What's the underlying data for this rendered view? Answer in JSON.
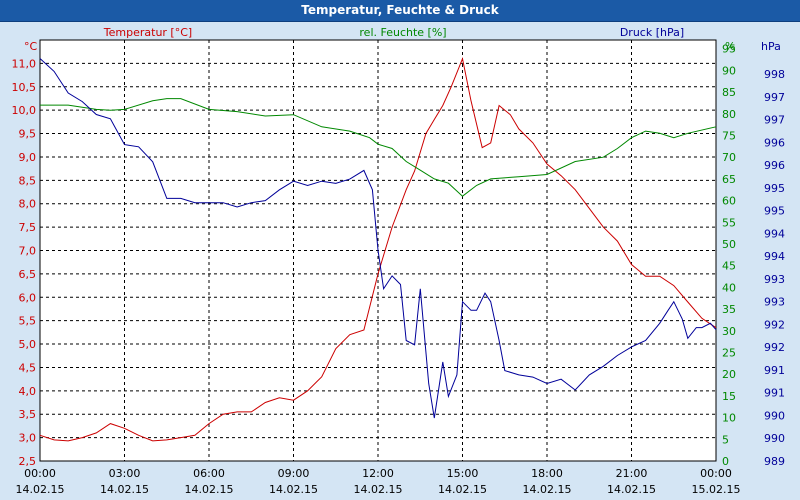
{
  "window": {
    "title": "Temperatur, Feuchte & Druck"
  },
  "chart_data": {
    "type": "line",
    "title": "Temperatur, Feuchte & Druck",
    "grid": true,
    "axes": {
      "temperature": {
        "unit_label": "°C",
        "ylim": [
          2.5,
          11.5
        ],
        "ticks": [
          "11,0",
          "10,5",
          "10,0",
          "9,5",
          "9,0",
          "8,5",
          "8,0",
          "7,5",
          "7,0",
          "6,5",
          "6,0",
          "5,5",
          "5,0",
          "4,5",
          "4,0",
          "3,5",
          "3,0",
          "2,5"
        ]
      },
      "humidity": {
        "unit_label": "%",
        "ylim": [
          0,
          97
        ],
        "ticks": [
          "95",
          "90",
          "85",
          "80",
          "75",
          "70",
          "65",
          "60",
          "55",
          "50",
          "45",
          "40",
          "35",
          "30",
          "25",
          "20",
          "15",
          "10",
          "5",
          "0"
        ]
      },
      "pressure": {
        "unit_label": "hPa",
        "ticks": [
          "998",
          "997",
          "997",
          "996",
          "996",
          "995",
          "995",
          "994",
          "994",
          "993",
          "993",
          "992",
          "992",
          "991",
          "991",
          "990",
          "990",
          "989"
        ]
      }
    },
    "x_ticks": [
      {
        "time": "00:00",
        "date": "14.02.15"
      },
      {
        "time": "03:00",
        "date": "14.02.15"
      },
      {
        "time": "06:00",
        "date": "14.02.15"
      },
      {
        "time": "09:00",
        "date": "14.02.15"
      },
      {
        "time": "12:00",
        "date": "14.02.15"
      },
      {
        "time": "15:00",
        "date": "14.02.15"
      },
      {
        "time": "18:00",
        "date": "14.02.15"
      },
      {
        "time": "21:00",
        "date": "14.02.15"
      },
      {
        "time": "00:00",
        "date": "15.02.15"
      }
    ],
    "series": [
      {
        "name": "Temperatur [°C]",
        "axis": "temperature",
        "color": "#cc0000",
        "points": [
          [
            0,
            3.05
          ],
          [
            0.5,
            2.95
          ],
          [
            1,
            2.93
          ],
          [
            1.5,
            3.0
          ],
          [
            2,
            3.1
          ],
          [
            2.5,
            3.3
          ],
          [
            3,
            3.2
          ],
          [
            3.5,
            3.05
          ],
          [
            4,
            2.93
          ],
          [
            4.5,
            2.95
          ],
          [
            5,
            3.0
          ],
          [
            5.5,
            3.05
          ],
          [
            6,
            3.3
          ],
          [
            6.5,
            3.5
          ],
          [
            7,
            3.55
          ],
          [
            7.5,
            3.55
          ],
          [
            8,
            3.75
          ],
          [
            8.5,
            3.85
          ],
          [
            9,
            3.8
          ],
          [
            9.5,
            4.0
          ],
          [
            10,
            4.3
          ],
          [
            10.5,
            4.9
          ],
          [
            11,
            5.2
          ],
          [
            11.5,
            5.3
          ],
          [
            12,
            6.5
          ],
          [
            12.5,
            7.5
          ],
          [
            13,
            8.3
          ],
          [
            13.3,
            8.7
          ],
          [
            13.7,
            9.5
          ],
          [
            14,
            9.8
          ],
          [
            14.3,
            10.1
          ],
          [
            14.6,
            10.5
          ],
          [
            15,
            11.1
          ],
          [
            15.3,
            10.2
          ],
          [
            15.7,
            9.2
          ],
          [
            16,
            9.3
          ],
          [
            16.3,
            10.1
          ],
          [
            16.7,
            9.9
          ],
          [
            17,
            9.6
          ],
          [
            17.5,
            9.3
          ],
          [
            18,
            8.85
          ],
          [
            18.5,
            8.6
          ],
          [
            19,
            8.3
          ],
          [
            19.5,
            7.9
          ],
          [
            20,
            7.5
          ],
          [
            20.5,
            7.2
          ],
          [
            21,
            6.7
          ],
          [
            21.5,
            6.45
          ],
          [
            22,
            6.45
          ],
          [
            22.5,
            6.25
          ],
          [
            23,
            5.9
          ],
          [
            23.5,
            5.55
          ],
          [
            24,
            5.35
          ]
        ]
      },
      {
        "name": "rel. Feuchte [%]",
        "axis": "humidity",
        "color": "#008800",
        "points": [
          [
            0,
            82
          ],
          [
            1,
            82
          ],
          [
            2,
            81
          ],
          [
            2.5,
            80.8
          ],
          [
            3,
            81
          ],
          [
            4,
            83
          ],
          [
            4.5,
            83.5
          ],
          [
            5,
            83.5
          ],
          [
            6,
            81
          ],
          [
            7,
            80.5
          ],
          [
            8,
            79.5
          ],
          [
            9,
            79.8
          ],
          [
            10,
            77
          ],
          [
            11,
            76
          ],
          [
            11.7,
            74.5
          ],
          [
            12,
            73
          ],
          [
            12.5,
            72
          ],
          [
            13,
            69
          ],
          [
            13.5,
            67
          ],
          [
            14,
            65
          ],
          [
            14.5,
            64
          ],
          [
            15,
            61
          ],
          [
            15.5,
            63.5
          ],
          [
            16,
            65
          ],
          [
            17,
            65.5
          ],
          [
            18,
            66
          ],
          [
            19,
            69
          ],
          [
            20,
            70
          ],
          [
            20.5,
            72
          ],
          [
            21,
            74.5
          ],
          [
            21.5,
            76
          ],
          [
            22,
            75.5
          ],
          [
            22.5,
            74.5
          ],
          [
            23,
            75.5
          ],
          [
            24,
            77
          ]
        ]
      },
      {
        "name": "Druck [hPa]",
        "axis": "pressure",
        "color": "#000099",
        "points": [
          [
            0,
            998.35
          ],
          [
            0.5,
            998.05
          ],
          [
            1,
            997.55
          ],
          [
            1.5,
            997.35
          ],
          [
            2,
            997.05
          ],
          [
            2.5,
            996.95
          ],
          [
            3,
            996.35
          ],
          [
            3.5,
            996.3
          ],
          [
            4,
            995.95
          ],
          [
            4.5,
            995.1
          ],
          [
            5,
            995.1
          ],
          [
            5.5,
            995.0
          ],
          [
            6,
            995.0
          ],
          [
            6.5,
            995.0
          ],
          [
            7,
            994.9
          ],
          [
            7.5,
            995.0
          ],
          [
            8,
            995.05
          ],
          [
            8.5,
            995.3
          ],
          [
            9,
            995.5
          ],
          [
            9.5,
            995.4
          ],
          [
            10,
            995.5
          ],
          [
            10.5,
            995.45
          ],
          [
            11,
            995.55
          ],
          [
            11.5,
            995.75
          ],
          [
            11.8,
            995.3
          ],
          [
            12,
            993.9
          ],
          [
            12.2,
            993.0
          ],
          [
            12.5,
            993.3
          ],
          [
            12.8,
            993.1
          ],
          [
            13,
            991.8
          ],
          [
            13.3,
            991.7
          ],
          [
            13.5,
            993.0
          ],
          [
            13.8,
            990.8
          ],
          [
            14,
            990.0
          ],
          [
            14.3,
            991.3
          ],
          [
            14.5,
            990.5
          ],
          [
            14.8,
            991.0
          ],
          [
            15,
            992.7
          ],
          [
            15.3,
            992.5
          ],
          [
            15.5,
            992.5
          ],
          [
            15.8,
            992.9
          ],
          [
            16,
            992.7
          ],
          [
            16.3,
            991.8
          ],
          [
            16.5,
            991.1
          ],
          [
            17,
            991.0
          ],
          [
            17.5,
            990.95
          ],
          [
            18,
            990.8
          ],
          [
            18.5,
            990.9
          ],
          [
            19,
            990.65
          ],
          [
            19.5,
            991.0
          ],
          [
            20,
            991.2
          ],
          [
            20.5,
            991.45
          ],
          [
            21,
            991.65
          ],
          [
            21.5,
            991.8
          ],
          [
            22,
            992.2
          ],
          [
            22.3,
            992.5
          ],
          [
            22.5,
            992.7
          ],
          [
            22.8,
            992.3
          ],
          [
            23,
            991.85
          ],
          [
            23.3,
            992.1
          ],
          [
            23.5,
            992.1
          ],
          [
            23.8,
            992.2
          ],
          [
            24,
            992.05
          ]
        ]
      }
    ]
  }
}
